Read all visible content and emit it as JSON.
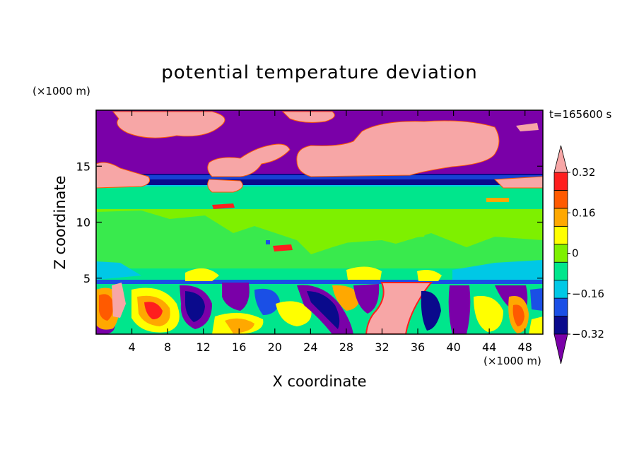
{
  "chart_data": {
    "type": "heatmap",
    "title": "potential temperature deviation",
    "xlabel": "X coordinate",
    "ylabel": "Z coordinate",
    "x_unit": "(×1000 m)",
    "y_unit": "(×1000 m)",
    "time_label": "t=165600 s",
    "xlim": [
      0,
      50
    ],
    "ylim": [
      0,
      20
    ],
    "x_ticks": [
      4,
      8,
      12,
      16,
      20,
      24,
      28,
      32,
      36,
      40,
      44,
      48
    ],
    "y_ticks": [
      5,
      10,
      15
    ],
    "colorbar": {
      "levels": [
        -0.4,
        -0.32,
        -0.24,
        -0.16,
        -0.08,
        0,
        0.08,
        0.16,
        0.24,
        0.32,
        0.4
      ],
      "tick_labels": [
        "0.32",
        "0.16",
        "0",
        "−0.16",
        "−0.32"
      ],
      "tick_values": [
        0.32,
        0.16,
        0,
        -0.16,
        -0.32
      ],
      "colors_low_to_high": [
        "#7a00a8",
        "#0a0a8c",
        "#1a4fe6",
        "#00c8e6",
        "#00e68c",
        "#7ef000",
        "#ffff00",
        "#ffa800",
        "#ff5a00",
        "#ff1e1e",
        "#f7a6a6"
      ],
      "extend": "both"
    },
    "layers": [
      {
        "z_range": [
          14.2,
          20
        ],
        "dominant": "below -0.4 with patches above 0.4"
      },
      {
        "z_range": [
          13.0,
          14.2
        ],
        "dominant": "-0.32 to -0.16"
      },
      {
        "z_range": [
          11.0,
          13.0
        ],
        "dominant": "-0.08 to 0"
      },
      {
        "z_range": [
          5.0,
          11.0
        ],
        "dominant": "0 to 0.08"
      },
      {
        "z_range": [
          4.7,
          5.0
        ],
        "dominant": "-0.16 to -0.08"
      },
      {
        "z_range": [
          0,
          4.7
        ],
        "dominant": "mixed -0.4 to 0.4"
      }
    ]
  }
}
